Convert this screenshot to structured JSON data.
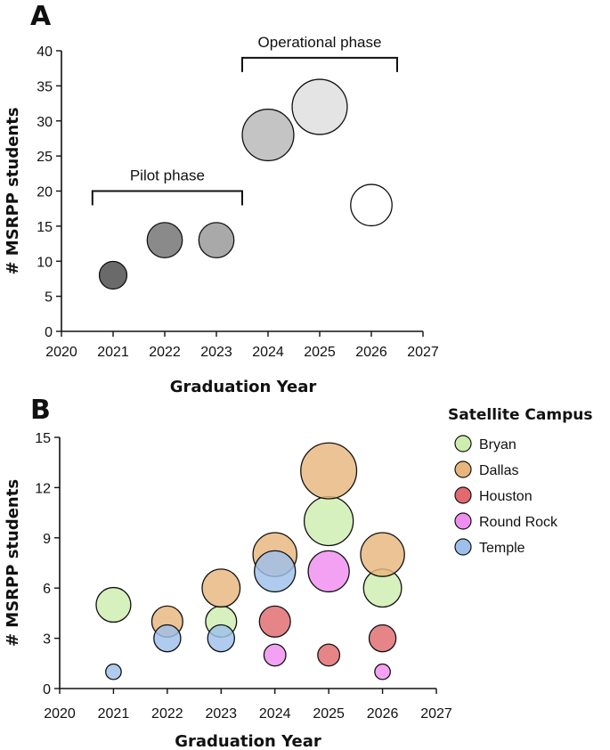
{
  "chart_data": [
    {
      "panel": "A",
      "type": "scatter",
      "xlabel": "Graduation Year",
      "ylabel": "# MSRPP students",
      "xlim": [
        2020,
        2027
      ],
      "ylim": [
        0,
        40
      ],
      "xticks": [
        2020,
        2021,
        2022,
        2023,
        2024,
        2025,
        2026,
        2027
      ],
      "yticks": [
        0,
        5,
        10,
        15,
        20,
        25,
        30,
        35,
        40
      ],
      "points": [
        {
          "x": 2021,
          "y": 8,
          "size": 8,
          "color": "#6a6a6a"
        },
        {
          "x": 2022,
          "y": 13,
          "size": 13,
          "color": "#8a8a8a"
        },
        {
          "x": 2023,
          "y": 13,
          "size": 13,
          "color": "#a9a9a9"
        },
        {
          "x": 2024,
          "y": 28,
          "size": 28,
          "color": "#c4c4c4"
        },
        {
          "x": 2025,
          "y": 32,
          "size": 32,
          "color": "#e4e4e4"
        },
        {
          "x": 2026,
          "y": 18,
          "size": 18,
          "color": "#ffffff"
        }
      ],
      "annotations": [
        {
          "text": "Pilot phase",
          "x_start": 2020.6,
          "x_end": 2023.5,
          "y": 20
        },
        {
          "text": "Operational phase",
          "x_start": 2023.5,
          "x_end": 2026.5,
          "y": 39
        }
      ]
    },
    {
      "panel": "B",
      "type": "scatter",
      "xlabel": "Graduation Year",
      "ylabel": "# MSRPP students",
      "xlim": [
        2020,
        2027
      ],
      "ylim": [
        0,
        15
      ],
      "xticks": [
        2020,
        2021,
        2022,
        2023,
        2024,
        2025,
        2026,
        2027
      ],
      "yticks": [
        0,
        3,
        6,
        9,
        12,
        15
      ],
      "legend_title": "Satellite Campus",
      "series": [
        {
          "name": "Bryan",
          "color": "#cdeeae",
          "points": [
            {
              "x": 2021,
              "y": 5
            },
            {
              "x": 2023,
              "y": 4
            },
            {
              "x": 2025,
              "y": 10
            },
            {
              "x": 2026,
              "y": 6
            }
          ]
        },
        {
          "name": "Dallas",
          "color": "#e8b67c",
          "points": [
            {
              "x": 2022,
              "y": 4
            },
            {
              "x": 2023,
              "y": 6
            },
            {
              "x": 2024,
              "y": 8
            },
            {
              "x": 2025,
              "y": 13
            },
            {
              "x": 2026,
              "y": 8
            }
          ]
        },
        {
          "name": "Houston",
          "color": "#e06a6e",
          "points": [
            {
              "x": 2024,
              "y": 4
            },
            {
              "x": 2025,
              "y": 2
            },
            {
              "x": 2026,
              "y": 3
            }
          ]
        },
        {
          "name": "Round Rock",
          "color": "#f08ef0",
          "points": [
            {
              "x": 2024,
              "y": 2
            },
            {
              "x": 2025,
              "y": 7
            },
            {
              "x": 2026,
              "y": 1
            }
          ]
        },
        {
          "name": "Temple",
          "color": "#9dc0ea",
          "points": [
            {
              "x": 2021,
              "y": 1
            },
            {
              "x": 2022,
              "y": 3
            },
            {
              "x": 2023,
              "y": 3
            },
            {
              "x": 2024,
              "y": 7
            }
          ]
        }
      ]
    }
  ]
}
